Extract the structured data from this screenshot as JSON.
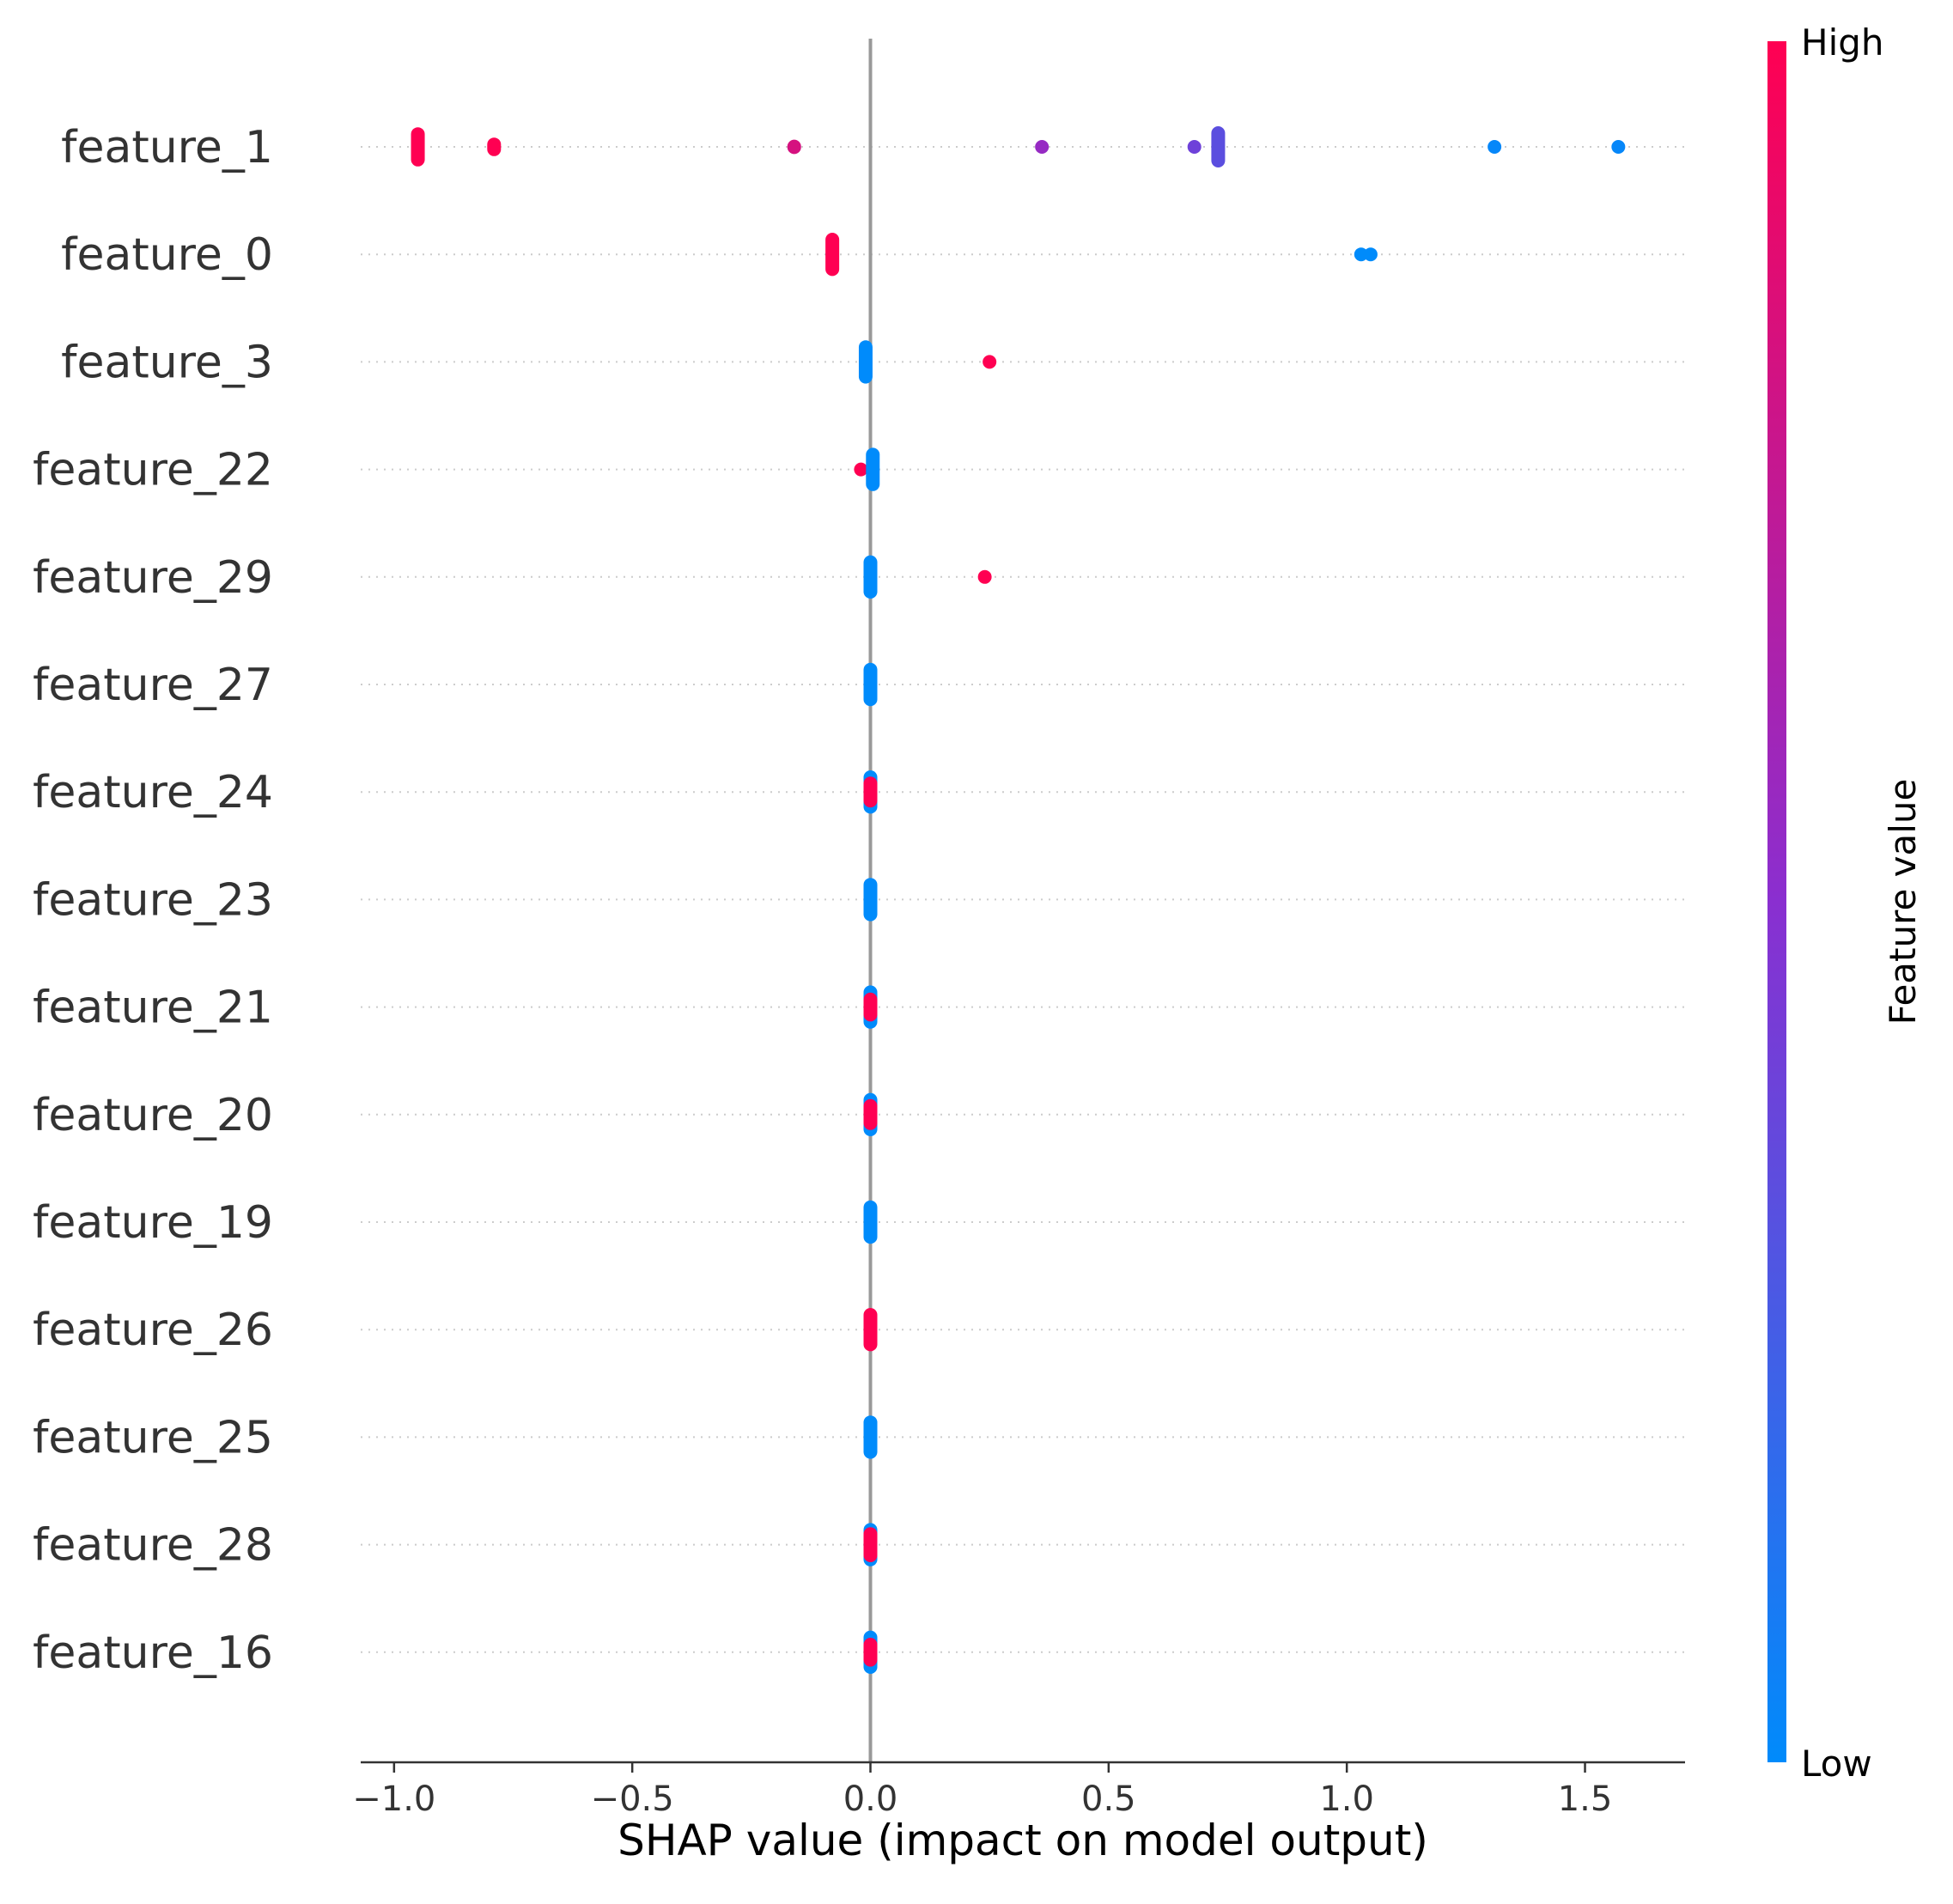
{
  "chart_data": {
    "type": "scatter",
    "subtype": "shap-beeswarm",
    "xlabel": "SHAP value (impact on model output)",
    "xlim": [
      -1.07,
      1.71
    ],
    "xticks": [
      -1.0,
      -0.5,
      0.0,
      0.5,
      1.0,
      1.5
    ],
    "xtick_labels": [
      "−1.0",
      "−0.5",
      "0.0",
      "0.5",
      "1.0",
      "1.5"
    ],
    "zero_line": true,
    "row_gridlines": "dotted",
    "colorbar": {
      "label": "Feature value",
      "high_label": "High",
      "low_label": "Low",
      "high_color": "#ff0052",
      "mid_color": "#8a2fd0",
      "low_color": "#008bfb"
    },
    "features": [
      {
        "name": "feature_1",
        "points": [
          {
            "x": -0.95,
            "spread": 0.38,
            "v": 1.0
          },
          {
            "x": -0.79,
            "spread": 0.18,
            "v": 1.0
          },
          {
            "x": -0.16,
            "spread": 0.14,
            "v": 0.82
          },
          {
            "x": 0.36,
            "spread": 0.08,
            "v": 0.55
          },
          {
            "x": 0.68,
            "spread": 0.04,
            "v": 0.4
          },
          {
            "x": 0.73,
            "spread": 0.4,
            "v": 0.33
          },
          {
            "x": 1.31,
            "spread": 0.12,
            "v": 0.02
          },
          {
            "x": 1.57,
            "spread": 0.1,
            "v": 0.02
          }
        ]
      },
      {
        "name": "feature_0",
        "points": [
          {
            "x": -0.08,
            "spread": 0.42,
            "v": 1.0
          },
          {
            "x": 1.03,
            "spread": 0.04,
            "v": 0.0
          },
          {
            "x": 1.05,
            "spread": 0.08,
            "v": 0.0
          }
        ]
      },
      {
        "name": "feature_3",
        "points": [
          {
            "x": -0.01,
            "spread": 0.42,
            "v": 0.0
          },
          {
            "x": 0.25,
            "spread": 0.06,
            "v": 1.0
          }
        ]
      },
      {
        "name": "feature_22",
        "points": [
          {
            "x": -0.02,
            "spread": 0.12,
            "v": 1.0
          },
          {
            "x": 0.005,
            "spread": 0.42,
            "v": 0.0
          }
        ]
      },
      {
        "name": "feature_29",
        "points": [
          {
            "x": 0.0,
            "spread": 0.42,
            "v": 0.0
          },
          {
            "x": 0.24,
            "spread": 0.04,
            "v": 1.0
          }
        ]
      },
      {
        "name": "feature_27",
        "points": [
          {
            "x": 0.0,
            "spread": 0.42,
            "v": 0.0
          }
        ]
      },
      {
        "name": "feature_24",
        "points": [
          {
            "x": 0.0,
            "spread": 0.42,
            "v": 0.0
          },
          {
            "x": 0.0,
            "spread": 0.3,
            "v": 1.0
          }
        ]
      },
      {
        "name": "feature_23",
        "points": [
          {
            "x": 0.0,
            "spread": 0.42,
            "v": 0.0
          }
        ]
      },
      {
        "name": "feature_21",
        "points": [
          {
            "x": 0.0,
            "spread": 0.42,
            "v": 0.0
          },
          {
            "x": 0.0,
            "spread": 0.28,
            "v": 1.0
          }
        ]
      },
      {
        "name": "feature_20",
        "points": [
          {
            "x": 0.0,
            "spread": 0.42,
            "v": 0.0
          },
          {
            "x": 0.0,
            "spread": 0.3,
            "v": 1.0
          }
        ]
      },
      {
        "name": "feature_19",
        "points": [
          {
            "x": 0.0,
            "spread": 0.42,
            "v": 0.0
          }
        ]
      },
      {
        "name": "feature_26",
        "points": [
          {
            "x": 0.0,
            "spread": 0.42,
            "v": 1.0
          }
        ]
      },
      {
        "name": "feature_25",
        "points": [
          {
            "x": 0.0,
            "spread": 0.42,
            "v": 0.0
          }
        ]
      },
      {
        "name": "feature_28",
        "points": [
          {
            "x": 0.0,
            "spread": 0.42,
            "v": 0.0
          },
          {
            "x": 0.0,
            "spread": 0.34,
            "v": 1.0
          }
        ]
      },
      {
        "name": "feature_16",
        "points": [
          {
            "x": 0.0,
            "spread": 0.42,
            "v": 0.0
          },
          {
            "x": 0.0,
            "spread": 0.28,
            "v": 1.0
          }
        ]
      }
    ]
  }
}
